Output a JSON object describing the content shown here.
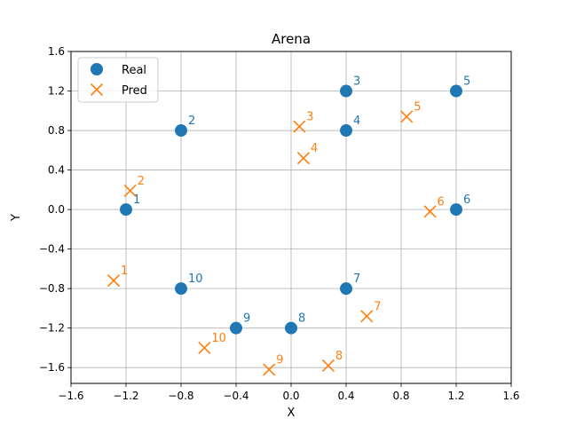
{
  "chart_data": {
    "type": "scatter",
    "title": "Arena",
    "xlabel": "X",
    "ylabel": "Y",
    "xlim": [
      -1.6,
      1.6
    ],
    "ylim": [
      -1.76,
      1.6
    ],
    "x_ticks": [
      "−1.6",
      "−1.2",
      "−0.8",
      "−0.4",
      "0.0",
      "0.4",
      "0.8",
      "1.2",
      "1.6"
    ],
    "y_ticks": [
      "−1.6",
      "−1.2",
      "−0.8",
      "−0.4",
      "0.0",
      "0.4",
      "0.8",
      "1.2",
      "1.6"
    ],
    "grid": true,
    "legend_position": "top-left",
    "series": [
      {
        "name": "Real",
        "marker": "circle",
        "color": "#1f77b4",
        "points": [
          {
            "label": "1",
            "x": -1.2,
            "y": 0.0
          },
          {
            "label": "2",
            "x": -0.8,
            "y": 0.8
          },
          {
            "label": "3",
            "x": 0.4,
            "y": 1.2
          },
          {
            "label": "4",
            "x": 0.4,
            "y": 0.8
          },
          {
            "label": "5",
            "x": 1.2,
            "y": 1.2
          },
          {
            "label": "6",
            "x": 1.2,
            "y": 0.0
          },
          {
            "label": "7",
            "x": 0.4,
            "y": -0.8
          },
          {
            "label": "8",
            "x": 0.0,
            "y": -1.2
          },
          {
            "label": "9",
            "x": -0.4,
            "y": -1.2
          },
          {
            "label": "10",
            "x": -0.8,
            "y": -0.8
          }
        ]
      },
      {
        "name": "Pred",
        "marker": "x",
        "color": "#ff7f0e",
        "points": [
          {
            "label": "1",
            "x": -1.29,
            "y": -0.72
          },
          {
            "label": "2",
            "x": -1.17,
            "y": 0.19
          },
          {
            "label": "3",
            "x": 0.06,
            "y": 0.84
          },
          {
            "label": "4",
            "x": 0.09,
            "y": 0.52
          },
          {
            "label": "5",
            "x": 0.84,
            "y": 0.94
          },
          {
            "label": "6",
            "x": 1.01,
            "y": -0.02
          },
          {
            "label": "7",
            "x": 0.55,
            "y": -1.08
          },
          {
            "label": "8",
            "x": 0.27,
            "y": -1.58
          },
          {
            "label": "9",
            "x": -0.16,
            "y": -1.62
          },
          {
            "label": "10",
            "x": -0.63,
            "y": -1.4
          }
        ]
      }
    ]
  }
}
